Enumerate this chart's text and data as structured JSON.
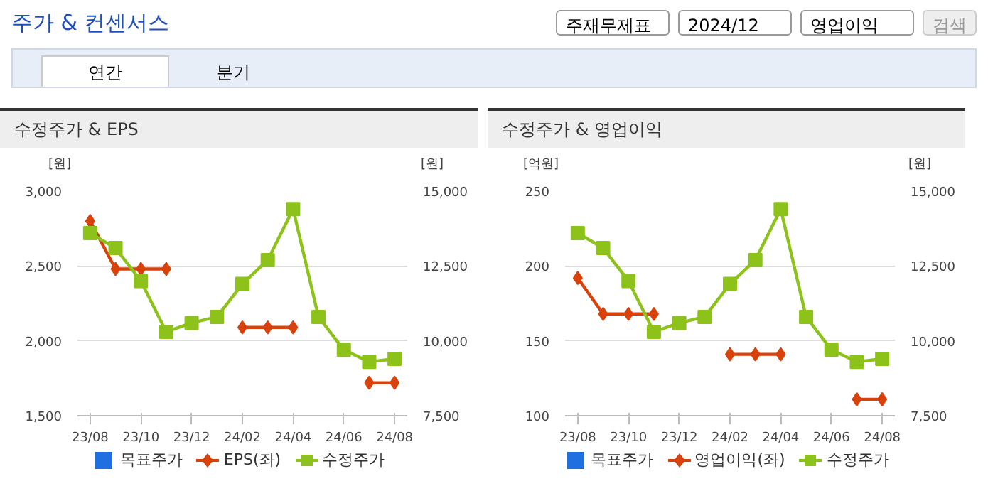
{
  "chart_data": [
    {
      "type": "other",
      "title": "주가 & 컨센서스",
      "annotations": [
        "주재무제표",
        "2024/12",
        "영업이익",
        "검색",
        "연간",
        "분기"
      ]
    },
    {
      "type": "line",
      "title": "수정주가 & EPS",
      "ylabel": "[원]",
      "y2label": "[원]",
      "categories": [
        "23/08",
        null,
        "23/10",
        null,
        "23/12",
        null,
        "24/02",
        null,
        "24/04",
        null,
        "24/06",
        null,
        "24/08"
      ],
      "ylim": [
        1500,
        3000
      ],
      "yticks": [
        {
          "value": 1500,
          "label": "1,500"
        },
        {
          "value": 2000,
          "label": "2,000"
        },
        {
          "value": 2500,
          "label": "2,500"
        },
        {
          "value": 3000,
          "label": "3,000"
        }
      ],
      "y2lim": [
        7500,
        15000
      ],
      "y2ticks": [
        {
          "value": 7500,
          "label": "7,500"
        },
        {
          "value": 10000,
          "label": "10,000"
        },
        {
          "value": 12500,
          "label": "12,500"
        },
        {
          "value": 15000,
          "label": "15,000"
        }
      ],
      "grid": "y",
      "legend": "bottom",
      "series": [
        {
          "name": "목표주가",
          "type": "bar",
          "axis": "y2",
          "color": "#1f6fe0",
          "values": [
            null,
            null,
            null,
            null,
            null,
            null,
            null,
            null,
            null,
            null,
            null,
            null,
            null
          ]
        },
        {
          "name": "EPS(좌)",
          "type": "line",
          "marker": "diamond",
          "color": "#d9420b",
          "values": [
            2800,
            2480,
            2480,
            2480,
            null,
            null,
            2090,
            2090,
            2090,
            null,
            null,
            1720,
            1720
          ]
        },
        {
          "name": "수정주가",
          "type": "line",
          "marker": "square",
          "axis": "y2",
          "color": "#8cc21a",
          "values": [
            13600,
            13100,
            12000,
            10300,
            10600,
            10800,
            11900,
            12700,
            14400,
            10800,
            9700,
            9300,
            9400
          ]
        }
      ]
    },
    {
      "type": "line",
      "title": "수정주가 & 영업이익",
      "ylabel": "[억원]",
      "y2label": "[원]",
      "categories": [
        "23/08",
        null,
        "23/10",
        null,
        "23/12",
        null,
        "24/02",
        null,
        "24/04",
        null,
        "24/06",
        null,
        "24/08"
      ],
      "ylim": [
        100,
        250
      ],
      "yticks": [
        100,
        150,
        200,
        250
      ],
      "y2lim": [
        7500,
        15000
      ],
      "y2ticks": [
        {
          "value": 7500,
          "label": "7,500"
        },
        {
          "value": 10000,
          "label": "10,000"
        },
        {
          "value": 12500,
          "label": "12,500"
        },
        {
          "value": 15000,
          "label": "15,000"
        }
      ],
      "grid": "y",
      "legend": "bottom",
      "series": [
        {
          "name": "목표주가",
          "type": "bar",
          "axis": "y2",
          "color": "#1f6fe0",
          "values": [
            null,
            null,
            null,
            null,
            null,
            null,
            null,
            null,
            null,
            null,
            null,
            null,
            null
          ]
        },
        {
          "name": "영업이익(좌)",
          "type": "line",
          "marker": "diamond",
          "color": "#d9420b",
          "values": [
            192,
            168,
            168,
            168,
            null,
            null,
            141,
            141,
            141,
            null,
            null,
            111,
            111
          ]
        },
        {
          "name": "수정주가",
          "type": "line",
          "marker": "square",
          "axis": "y2",
          "color": "#8cc21a",
          "values": [
            13600,
            13100,
            12000,
            10300,
            10600,
            10800,
            11900,
            12700,
            14400,
            10800,
            9700,
            9300,
            9400
          ]
        }
      ]
    }
  ]
}
